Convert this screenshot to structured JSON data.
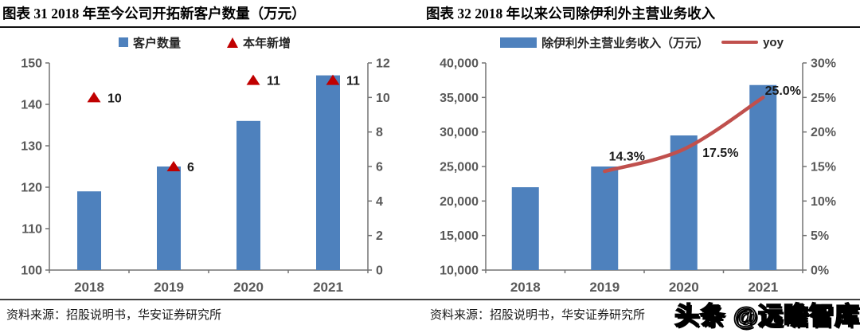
{
  "watermark": "头条 @远瞻智库",
  "charts": [
    {
      "title": "图表 31 2018 年至今公司开拓新客户数量（万元）",
      "source": "资料来源：招股说明书，华安证券研究所",
      "colors": {
        "bar": "#4E81BD",
        "marker": "#C00000",
        "axis": "#737373",
        "tick_text": "#595959",
        "label_text": "#1a1a1a"
      },
      "legend": [
        {
          "label": "客户数量",
          "marker": "square",
          "color": "#4E81BD"
        },
        {
          "label": "本年新增",
          "marker": "triangle",
          "color": "#C00000"
        }
      ],
      "chart_data": {
        "type": "bar",
        "categories": [
          "2018",
          "2019",
          "2020",
          "2021"
        ],
        "series": [
          {
            "name": "客户数量",
            "type": "bar",
            "axis": "left",
            "values": [
              119,
              125,
              136,
              147
            ]
          },
          {
            "name": "本年新增",
            "type": "scatter",
            "axis": "right",
            "values": [
              10,
              6,
              11,
              11
            ],
            "point_labels": [
              "10",
              "6",
              "11",
              "11"
            ]
          }
        ],
        "left_axis": {
          "min": 100,
          "max": 150,
          "step": 10,
          "tick_labels": [
            "100",
            "110",
            "120",
            "130",
            "140",
            "150"
          ]
        },
        "right_axis": {
          "min": 0,
          "max": 12,
          "step": 2,
          "tick_labels": [
            "0",
            "2",
            "4",
            "6",
            "8",
            "10",
            "12"
          ]
        },
        "grid": false,
        "legend_position": "top"
      }
    },
    {
      "title": "图表 32 2018 年以来公司除伊利外主营业务收入",
      "source": "资料来源：招股说明书，华安证券研究所",
      "colors": {
        "bar": "#4E81BD",
        "line": "#C0504D",
        "axis": "#737373",
        "tick_text": "#595959",
        "label_text": "#1a1a1a"
      },
      "legend": [
        {
          "label": "除伊利外主营业务收入（万元）",
          "marker": "bar",
          "color": "#4E81BD"
        },
        {
          "label": "yoy",
          "marker": "line",
          "color": "#C0504D"
        }
      ],
      "chart_data": {
        "type": "bar+line",
        "categories": [
          "2018",
          "2019",
          "2020",
          "2021"
        ],
        "series": [
          {
            "name": "除伊利外主营业务收入（万元）",
            "type": "bar",
            "axis": "left",
            "values": [
              22000,
              25000,
              29500,
              36800
            ]
          },
          {
            "name": "yoy",
            "type": "line",
            "axis": "right",
            "values": [
              null,
              14.3,
              17.5,
              25.0
            ],
            "point_labels": [
              null,
              "14.3%",
              "17.5%",
              "25.0%"
            ]
          }
        ],
        "left_axis": {
          "min": 10000,
          "max": 40000,
          "step": 5000,
          "tick_labels": [
            "10,000",
            "15,000",
            "20,000",
            "25,000",
            "30,000",
            "35,000",
            "40,000"
          ]
        },
        "right_axis": {
          "min": 0,
          "max": 30,
          "step": 5,
          "tick_labels": [
            "0%",
            "5%",
            "10%",
            "15%",
            "20%",
            "25%",
            "30%"
          ]
        },
        "grid": false,
        "legend_position": "top"
      }
    }
  ]
}
